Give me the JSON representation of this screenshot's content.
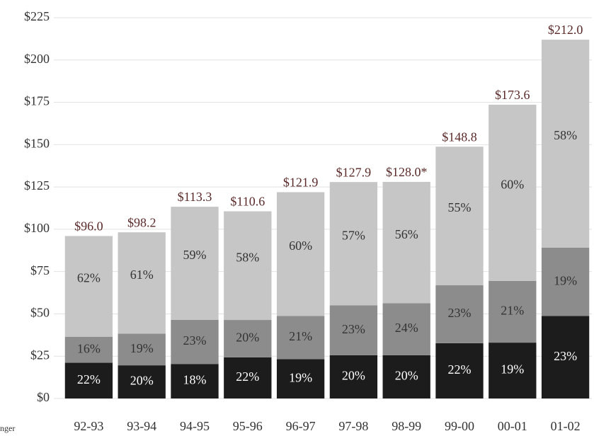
{
  "chart_data": {
    "type": "stacked_bar",
    "xlabel": "nger",
    "categories": [
      "92-93",
      "93-94",
      "94-95",
      "95-96",
      "96-97",
      "97-98",
      "98-99",
      "99-00",
      "00-01",
      "01-02"
    ],
    "series": [
      {
        "color": "#1c1c1c",
        "values": [
          21.1,
          19.6,
          20.4,
          24.3,
          23.2,
          25.6,
          25.6,
          32.7,
          33.0,
          48.8
        ],
        "value_labels": [
          "22%",
          "20%",
          "18%",
          "22%",
          "19%",
          "20%",
          "20%",
          "22%",
          "19%",
          "23%"
        ]
      },
      {
        "color": "#8c8c8c",
        "values": [
          15.4,
          18.7,
          26.1,
          22.1,
          25.6,
          29.4,
          30.7,
          34.2,
          36.5,
          40.3
        ],
        "value_labels": [
          "16%",
          "19%",
          "23%",
          "20%",
          "21%",
          "23%",
          "24%",
          "23%",
          "21%",
          "19%"
        ]
      },
      {
        "color": "#c6c6c6",
        "values": [
          59.5,
          59.9,
          66.8,
          64.2,
          73.1,
          72.9,
          71.7,
          81.9,
          104.1,
          122.9
        ],
        "value_labels": [
          "62%",
          "61%",
          "59%",
          "58%",
          "60%",
          "57%",
          "56%",
          "55%",
          "60%",
          "58%"
        ]
      }
    ],
    "totals": [
      96.0,
      98.2,
      113.3,
      110.6,
      121.9,
      127.9,
      128.0,
      148.8,
      173.6,
      212.0
    ],
    "total_labels": [
      "$96.0",
      "$98.2",
      "$113.3",
      "$110.6",
      "$121.9",
      "$127.9",
      "$128.0*",
      "$148.8",
      "$173.6",
      "$212.0"
    ],
    "ylim": [
      0,
      225
    ],
    "yticks": [
      {
        "value": 0,
        "label": "$0"
      },
      {
        "value": 25,
        "label": "$25"
      },
      {
        "value": 50,
        "label": "$50"
      },
      {
        "value": 75,
        "label": "$75"
      },
      {
        "value": 100,
        "label": "$100"
      },
      {
        "value": 125,
        "label": "$125"
      },
      {
        "value": 150,
        "label": "$150"
      },
      {
        "value": 175,
        "label": "$175"
      },
      {
        "value": 200,
        "label": "$200"
      },
      {
        "value": 225,
        "label": "$225"
      }
    ],
    "grid": true
  }
}
